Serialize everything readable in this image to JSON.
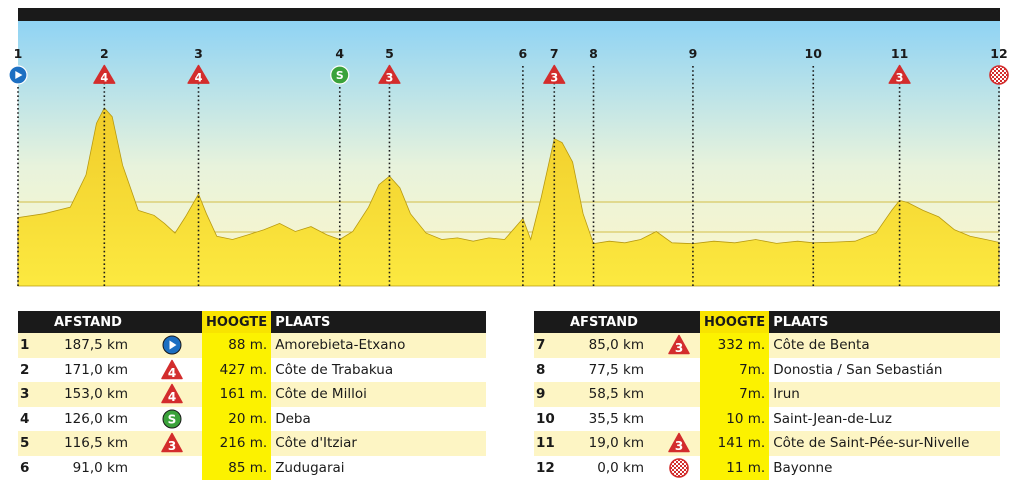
{
  "chart_data": {
    "type": "area",
    "title": "",
    "xlabel": "",
    "ylabel": "",
    "markers": [
      {
        "label": "1",
        "icon": "start-icon",
        "km": 0.0
      },
      {
        "label": "2",
        "icon": "cat-4-icon",
        "cat": "4",
        "km": 16.5
      },
      {
        "label": "3",
        "icon": "cat-4-icon",
        "cat": "4",
        "km": 34.5
      },
      {
        "label": "4",
        "icon": "sprint-icon",
        "cat": "S",
        "km": 61.5
      },
      {
        "label": "5",
        "icon": "cat-3-icon",
        "cat": "3",
        "km": 71.0
      },
      {
        "label": "6",
        "icon": "",
        "km": 96.5
      },
      {
        "label": "7",
        "icon": "cat-3-icon",
        "cat": "3",
        "km": 102.5
      },
      {
        "label": "8",
        "icon": "",
        "km": 110.0
      },
      {
        "label": "9",
        "icon": "",
        "km": 129.0
      },
      {
        "label": "10",
        "icon": "",
        "km": 152.0
      },
      {
        "label": "11",
        "icon": "cat-3-icon",
        "cat": "3",
        "km": 168.5
      },
      {
        "label": "12",
        "icon": "finish-icon",
        "km": 187.5
      }
    ],
    "profile": {
      "x_km": [
        0,
        5,
        10,
        13,
        15,
        16.5,
        18,
        20,
        23,
        26,
        28,
        30,
        32,
        34.5,
        36,
        38,
        41,
        44,
        47,
        50,
        53,
        56,
        59,
        61.5,
        64,
        67,
        69,
        71,
        73,
        75,
        78,
        81,
        84,
        87,
        90,
        93,
        96.5,
        98,
        100,
        102.5,
        104,
        106,
        108,
        110,
        113,
        116,
        119,
        122,
        125,
        129,
        133,
        137,
        141,
        145,
        149,
        152,
        156,
        160,
        164,
        167,
        168.5,
        170,
        173,
        176,
        179,
        182,
        185,
        187.5
      ],
      "elevation_m": [
        88,
        100,
        120,
        220,
        380,
        427,
        400,
        250,
        110,
        95,
        70,
        40,
        90,
        161,
        100,
        30,
        20,
        35,
        50,
        70,
        45,
        60,
        35,
        20,
        45,
        120,
        190,
        216,
        180,
        100,
        40,
        20,
        25,
        15,
        25,
        20,
        85,
        20,
        150,
        332,
        320,
        260,
        100,
        7,
        15,
        10,
        20,
        45,
        10,
        7,
        15,
        10,
        20,
        8,
        15,
        10,
        12,
        15,
        40,
        110,
        141,
        135,
        110,
        90,
        50,
        30,
        20,
        11
      ]
    },
    "ylim": [
      0,
      450
    ],
    "xlim": [
      0,
      187.5
    ],
    "grid": true
  },
  "table_headers": {
    "afstand": "AFSTAND",
    "hoogte": "HOOGTE",
    "plaats": "PLAATS"
  },
  "table_left": [
    {
      "num": "1",
      "distance": "187,5 km",
      "icon": "start-icon",
      "height": "88 m.",
      "place": "Amorebieta-Etxano"
    },
    {
      "num": "2",
      "distance": "171,0 km",
      "icon": "cat-4-icon",
      "cat": "4",
      "height": "427 m.",
      "place": "Côte de Trabakua"
    },
    {
      "num": "3",
      "distance": "153,0 km",
      "icon": "cat-4-icon",
      "cat": "4",
      "height": "161 m.",
      "place": "Côte de Milloi"
    },
    {
      "num": "4",
      "distance": "126,0 km",
      "icon": "sprint-icon",
      "cat": "S",
      "height": "20 m.",
      "place": "Deba"
    },
    {
      "num": "5",
      "distance": "116,5 km",
      "icon": "cat-3-icon",
      "cat": "3",
      "height": "216 m.",
      "place": "Côte d'Itziar"
    },
    {
      "num": "6",
      "distance": "91,0 km",
      "icon": "",
      "height": "85 m.",
      "place": "Zudugarai"
    }
  ],
  "table_right": [
    {
      "num": "7",
      "distance": "85,0 km",
      "icon": "cat-3-icon",
      "cat": "3",
      "height": "332 m.",
      "place": "Côte de Benta"
    },
    {
      "num": "8",
      "distance": "77,5 km",
      "icon": "",
      "height": "7m.",
      "place": "Donostia / San Sebastián"
    },
    {
      "num": "9",
      "distance": "58,5 km",
      "icon": "",
      "height": "7m.",
      "place": "Irun"
    },
    {
      "num": "10",
      "distance": "35,5 km",
      "icon": "",
      "height": "10 m.",
      "place": "Saint-Jean-de-Luz"
    },
    {
      "num": "11",
      "distance": "19,0 km",
      "icon": "cat-3-icon",
      "cat": "3",
      "height": "141 m.",
      "place": "Côte de Saint-Pée-sur-Nivelle"
    },
    {
      "num": "12",
      "distance": "0,0 km",
      "icon": "finish-icon",
      "height": "11 m.",
      "place": "Bayonne"
    }
  ],
  "colors": {
    "sky_top": "#8fd3f4",
    "sky_bottom": "#fdf6c8",
    "area_top": "#f2d22e",
    "area_bottom": "#fce940",
    "start": "#1c6fc2",
    "sprint": "#3aa23a",
    "climb": "#d32d2d",
    "finish": "#d32d2d",
    "dark": "#1a1a1a"
  }
}
